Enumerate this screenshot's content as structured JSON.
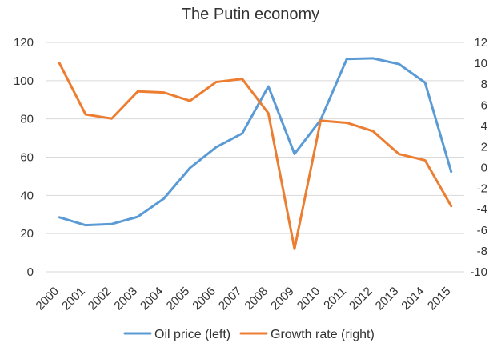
{
  "chart_data": {
    "type": "line",
    "title": "The Putin economy",
    "categories": [
      "2000",
      "2001",
      "2002",
      "2003",
      "2004",
      "2005",
      "2006",
      "2007",
      "2008",
      "2009",
      "2010",
      "2011",
      "2012",
      "2013",
      "2014",
      "2015"
    ],
    "left_axis": {
      "min": 0,
      "max": 120,
      "step": 20,
      "ticks": [
        "0",
        "20",
        "40",
        "60",
        "80",
        "100",
        "120"
      ]
    },
    "right_axis": {
      "min": -10,
      "max": 12,
      "step": 2,
      "ticks": [
        "-10",
        "-8",
        "-6",
        "-4",
        "-2",
        "0",
        "2",
        "4",
        "6",
        "8",
        "10",
        "12"
      ]
    },
    "series": [
      {
        "name": "Oil price (left)",
        "axis": "left",
        "color": "#5B9BD5",
        "values": [
          28.5,
          24.4,
          25.0,
          28.8,
          38.3,
          54.4,
          65.2,
          72.4,
          97.0,
          61.7,
          79.5,
          111.3,
          111.7,
          108.7,
          99.0,
          52.4
        ]
      },
      {
        "name": "Growth rate (right)",
        "axis": "right",
        "color": "#ED7D31",
        "values": [
          10.0,
          5.1,
          4.7,
          7.3,
          7.2,
          6.4,
          8.2,
          8.5,
          5.2,
          -7.8,
          4.5,
          4.3,
          3.5,
          1.3,
          0.7,
          -3.7
        ]
      }
    ],
    "legend": {
      "position": "bottom",
      "entries": [
        "Oil price (left)",
        "Growth rate (right)"
      ]
    },
    "colors": {
      "gridline": "#D9D9D9",
      "text": "#333333"
    }
  }
}
